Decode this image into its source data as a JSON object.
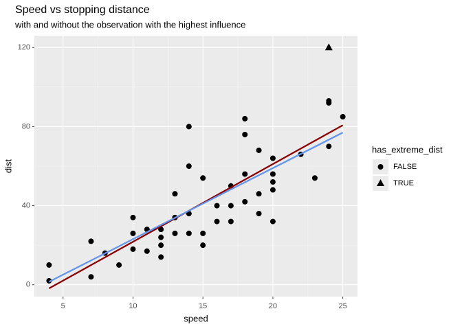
{
  "chart_data": {
    "type": "scatter",
    "title": "Speed vs stopping distance",
    "subtitle": "with and without the observation with the highest influence",
    "x_label": "speed",
    "y_label": "dist",
    "legend_title": "has_extreme_dist",
    "xlim": [
      2.95,
      26.05
    ],
    "ylim": [
      -6,
      126
    ],
    "xticks": [
      5,
      10,
      15,
      20,
      25
    ],
    "yticks": [
      0,
      40,
      80,
      120
    ],
    "grid": true,
    "series": [
      {
        "name": "FALSE",
        "color": "#000000",
        "shape": "circle",
        "x": [
          4,
          4,
          7,
          7,
          8,
          9,
          10,
          10,
          10,
          11,
          11,
          12,
          12,
          12,
          12,
          13,
          13,
          13,
          13,
          14,
          14,
          14,
          14,
          15,
          15,
          15,
          16,
          16,
          17,
          17,
          17,
          18,
          18,
          18,
          18,
          19,
          19,
          19,
          20,
          20,
          20,
          20,
          20,
          22,
          23,
          24,
          24,
          24,
          25
        ],
        "values": [
          2,
          10,
          4,
          22,
          16,
          10,
          18,
          26,
          34,
          17,
          28,
          14,
          20,
          24,
          28,
          26,
          34,
          34,
          46,
          26,
          36,
          60,
          80,
          20,
          26,
          54,
          32,
          40,
          32,
          40,
          50,
          42,
          56,
          76,
          84,
          36,
          46,
          68,
          32,
          48,
          52,
          56,
          64,
          66,
          54,
          70,
          92,
          93,
          85
        ]
      },
      {
        "name": "TRUE",
        "color": "#000000",
        "shape": "triangle",
        "x": [
          24
        ],
        "values": [
          120
        ]
      }
    ],
    "lines": [
      {
        "color": "#8b0000",
        "x": [
          4,
          25
        ],
        "values": [
          -1.85,
          80.7
        ]
      },
      {
        "color": "#6495ed",
        "x": [
          4,
          25
        ],
        "values": [
          1.5,
          77
        ]
      }
    ]
  }
}
